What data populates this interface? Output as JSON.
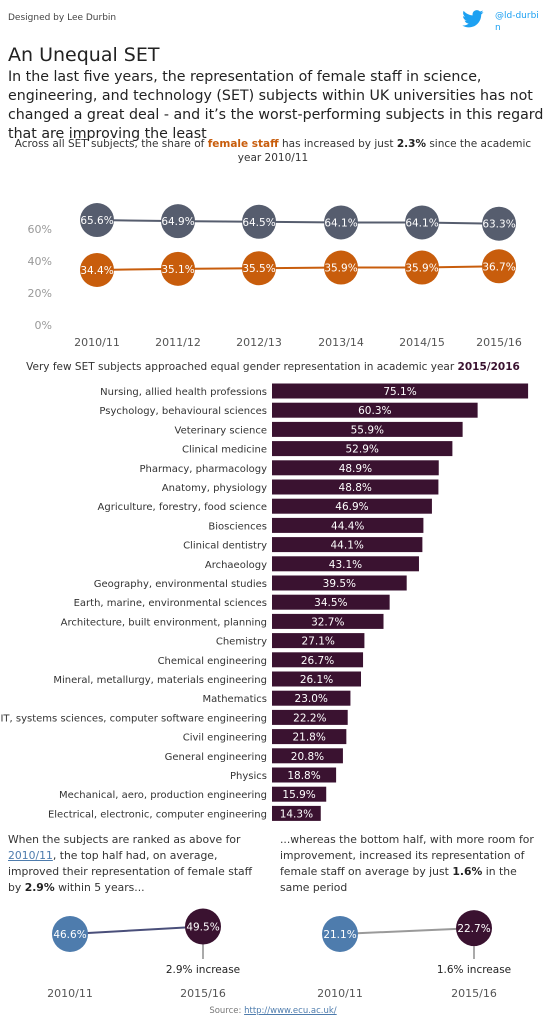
{
  "header": {
    "credit": "Designed by Lee Durbin",
    "twitter_handle": "@ld-durbin",
    "title": "An Unequal SET",
    "subtitle": "In the last five years, the representation of female staff in science, engineering, and technology (SET) subjects within UK universities has not changed a great deal - and it’s the worst-performing subjects in this regard that are improving the least"
  },
  "trend_note": {
    "pre": "Across all SET subjects, the share of ",
    "highlight": "female staff",
    "mid": " has increased by just ",
    "value": "2.3%",
    "post": " since the academic year 2010/11"
  },
  "bar_note": {
    "pre": "Very few SET subjects approached equal gender representation in academic year ",
    "highlight": "2015/2016"
  },
  "left_note": {
    "p1": "When the subjects are ranked as above for ",
    "year": "2010/11",
    "p2": ", the top half had, on average, improved their representation of female staff by ",
    "value": "2.9%",
    "p3": " within 5 years..."
  },
  "right_note": {
    "p1": "...whereas the bottom half, with more room for improvement, increased its representation of female staff on average by just ",
    "value": "1.6%",
    "p2": " in the same period"
  },
  "source": {
    "label": "Source: ",
    "url": "http://www.ecu.ac.uk/"
  },
  "colors": {
    "male": "#565d6e",
    "female": "#c85d0c",
    "bar": "#3a1230",
    "start_dot": "#4e7cad",
    "end_dot": "#3a1230"
  },
  "chart_data": [
    {
      "type": "line",
      "categories": [
        "2010/11",
        "2011/12",
        "2012/13",
        "2013/14",
        "2014/15",
        "2015/16"
      ],
      "series": [
        {
          "values": [
            65.6,
            64.9,
            64.5,
            64.1,
            64.1,
            63.3
          ],
          "labels": [
            "65.6%",
            "64.9%",
            "64.5%",
            "64.1%",
            "64.1%",
            "63.3%"
          ]
        },
        {
          "name": "female staff",
          "values": [
            34.4,
            35.1,
            35.5,
            35.9,
            35.9,
            36.7
          ],
          "labels": [
            "34.4%",
            "35.1%",
            "35.5%",
            "35.9%",
            "35.9%",
            "36.7%"
          ]
        }
      ],
      "y_ticks": [
        "0%",
        "20%",
        "40%",
        "60%"
      ],
      "y_tick_values": [
        0,
        20,
        40,
        60
      ],
      "ylim": [
        0,
        75
      ],
      "grid": false
    },
    {
      "type": "bar",
      "orientation": "horizontal",
      "categories": [
        "Nursing, allied health professions",
        "Psychology, behavioural sciences",
        "Veterinary science",
        "Clinical medicine",
        "Pharmacy, pharmacology",
        "Anatomy, physiology",
        "Agriculture, forestry, food science",
        "Biosciences",
        "Clinical dentistry",
        "Archaeology",
        "Geography, environmental studies",
        "Earth, marine, environmental sciences",
        "Architecture, built environment, planning",
        "Chemistry",
        "Chemical engineering",
        "Mineral, metallurgy, materials engineering",
        "Mathematics",
        "IT, systems sciences, computer software engineering",
        "Civil engineering",
        "General engineering",
        "Physics",
        "Mechanical, aero, production engineering",
        "Electrical, electronic, computer engineering"
      ],
      "values": [
        75.1,
        60.3,
        55.9,
        52.9,
        48.9,
        48.8,
        46.9,
        44.4,
        44.1,
        43.1,
        39.5,
        34.5,
        32.7,
        27.1,
        26.7,
        26.1,
        23.0,
        22.2,
        21.8,
        20.8,
        18.8,
        15.9,
        14.3
      ],
      "labels": [
        "75.1%",
        "60.3%",
        "55.9%",
        "52.9%",
        "48.9%",
        "48.8%",
        "46.9%",
        "44.4%",
        "44.1%",
        "43.1%",
        "39.5%",
        "34.5%",
        "32.7%",
        "27.1%",
        "26.7%",
        "26.1%",
        "23.0%",
        "22.2%",
        "21.8%",
        "20.8%",
        "18.8%",
        "15.9%",
        "14.3%"
      ]
    },
    {
      "type": "line",
      "categories": [
        "2010/11",
        "2015/16"
      ],
      "values": [
        46.6,
        49.5
      ],
      "labels": [
        "46.6%",
        "49.5%"
      ],
      "annotation": "2.9% increase"
    },
    {
      "type": "line",
      "categories": [
        "2010/11",
        "2015/16"
      ],
      "values": [
        21.1,
        22.7
      ],
      "labels": [
        "21.1%",
        "22.7%"
      ],
      "annotation": "1.6% increase"
    }
  ]
}
